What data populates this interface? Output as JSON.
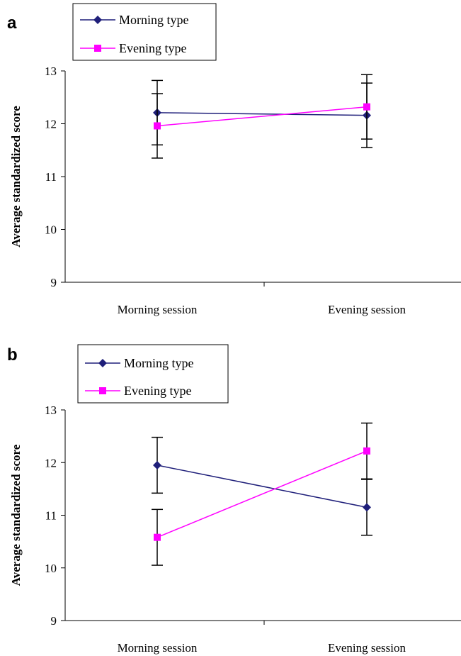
{
  "chart_data": [
    {
      "type": "line",
      "panel_label": "a",
      "categories": [
        "Morning session",
        "Evening session"
      ],
      "ylabel": "Average standardized score",
      "ylim": [
        9,
        13
      ],
      "yticks": [
        "9",
        "10",
        "11",
        "12",
        "13"
      ],
      "legend_placement": "top-left",
      "series": [
        {
          "name": "Morning type",
          "marker": "diamond",
          "color": "#1f1f7a",
          "values": [
            12.21,
            12.16
          ],
          "error": [
            0.61,
            0.61
          ]
        },
        {
          "name": "Evening type",
          "marker": "square",
          "color": "#ff00ff",
          "values": [
            11.96,
            12.32
          ],
          "error": [
            0.61,
            0.61
          ]
        }
      ]
    },
    {
      "type": "line",
      "panel_label": "b",
      "categories": [
        "Morning session",
        "Evening session"
      ],
      "ylabel": "Average standardized score",
      "ylim": [
        9,
        13
      ],
      "yticks": [
        "9",
        "10",
        "11",
        "12",
        "13"
      ],
      "legend_placement": "top-left",
      "series": [
        {
          "name": "Morning type",
          "marker": "diamond",
          "color": "#1f1f7a",
          "values": [
            11.95,
            11.15
          ],
          "error": [
            0.53,
            0.53
          ]
        },
        {
          "name": "Evening type",
          "marker": "square",
          "color": "#ff00ff",
          "values": [
            10.58,
            12.22
          ],
          "error": [
            0.53,
            0.53
          ]
        }
      ]
    }
  ]
}
